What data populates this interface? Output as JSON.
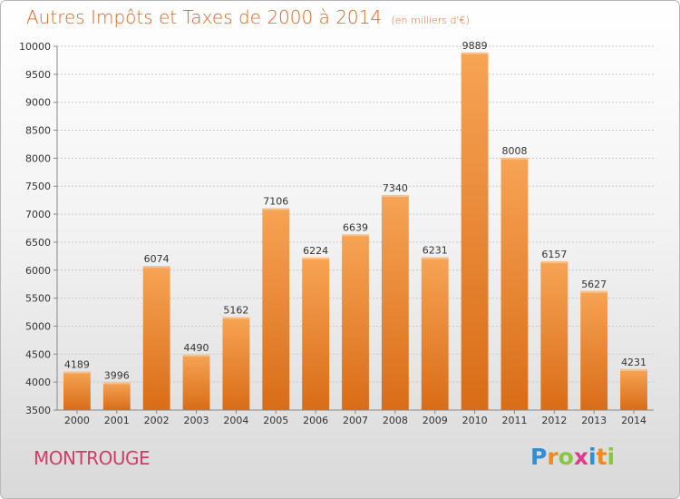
{
  "chart_data": {
    "type": "bar",
    "title": "Autres Impôts et Taxes de 2000 à 2014",
    "subtitle": "(en milliers d'€)",
    "categories": [
      "2000",
      "2001",
      "2002",
      "2003",
      "2004",
      "2005",
      "2006",
      "2007",
      "2008",
      "2009",
      "2010",
      "2011",
      "2012",
      "2013",
      "2014"
    ],
    "values": [
      4189,
      3996,
      6074,
      4490,
      5162,
      7106,
      6224,
      6639,
      7340,
      6231,
      9889,
      8008,
      6157,
      5627,
      4231
    ],
    "ylim": [
      3500,
      10000
    ],
    "yticks": [
      3500,
      4000,
      4500,
      5000,
      5500,
      6000,
      6500,
      7000,
      7500,
      8000,
      8500,
      9000,
      9500,
      10000
    ],
    "grid": true,
    "xlabel": "",
    "ylabel": "",
    "bar_color_top": "#f6a455",
    "bar_color_bottom": "#d96c17"
  },
  "footer": {
    "city": "MONTROUGE",
    "logo_parts": [
      "P",
      "r",
      "o",
      "x",
      "i",
      "t",
      "i"
    ]
  },
  "colors": {
    "title": "#e0651f",
    "city": "#d63a6a"
  }
}
